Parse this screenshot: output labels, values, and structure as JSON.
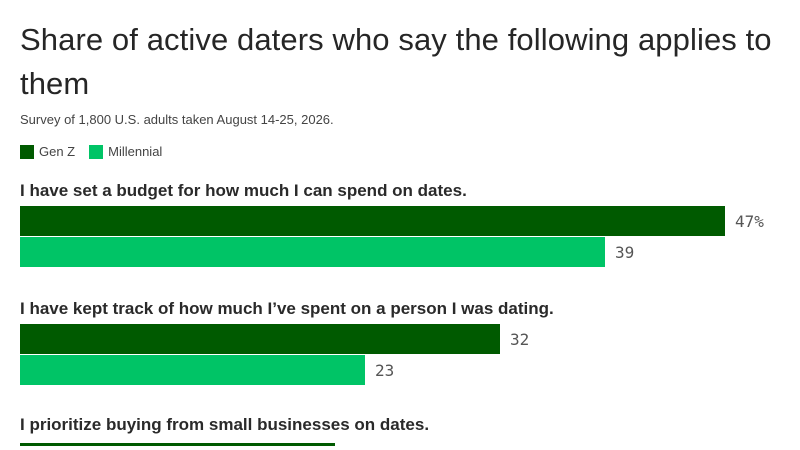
{
  "title": "Share of active daters who say the following applies to them",
  "subtitle": "Survey of 1,800 U.S. adults taken August 14-25, 2026.",
  "colors": {
    "gen_z": "#005a00",
    "millennial": "#00c466"
  },
  "chart_data": {
    "type": "bar",
    "orientation": "horizontal",
    "title": "Share of active daters who say the following applies to them",
    "subtitle": "Survey of 1,800 U.S. adults taken August 14-25, 2026.",
    "xlim": [
      0,
      50
    ],
    "grid": false,
    "legend": "top-left",
    "unit_suffix": "%",
    "categories": [
      "I have set a budget for how much I can spend on dates.",
      "I have kept track of how much I’ve spent on a person I was dating.",
      "I prioritize buying from small businesses on dates."
    ],
    "series": [
      {
        "name": "Gen Z",
        "color": "#005a00",
        "values": [
          47,
          32,
          21
        ],
        "labels": [
          "47%",
          "32",
          ""
        ]
      },
      {
        "name": "Millennial",
        "color": "#00c466",
        "values": [
          39,
          23,
          null
        ],
        "labels": [
          "39",
          "23",
          ""
        ]
      }
    ]
  }
}
